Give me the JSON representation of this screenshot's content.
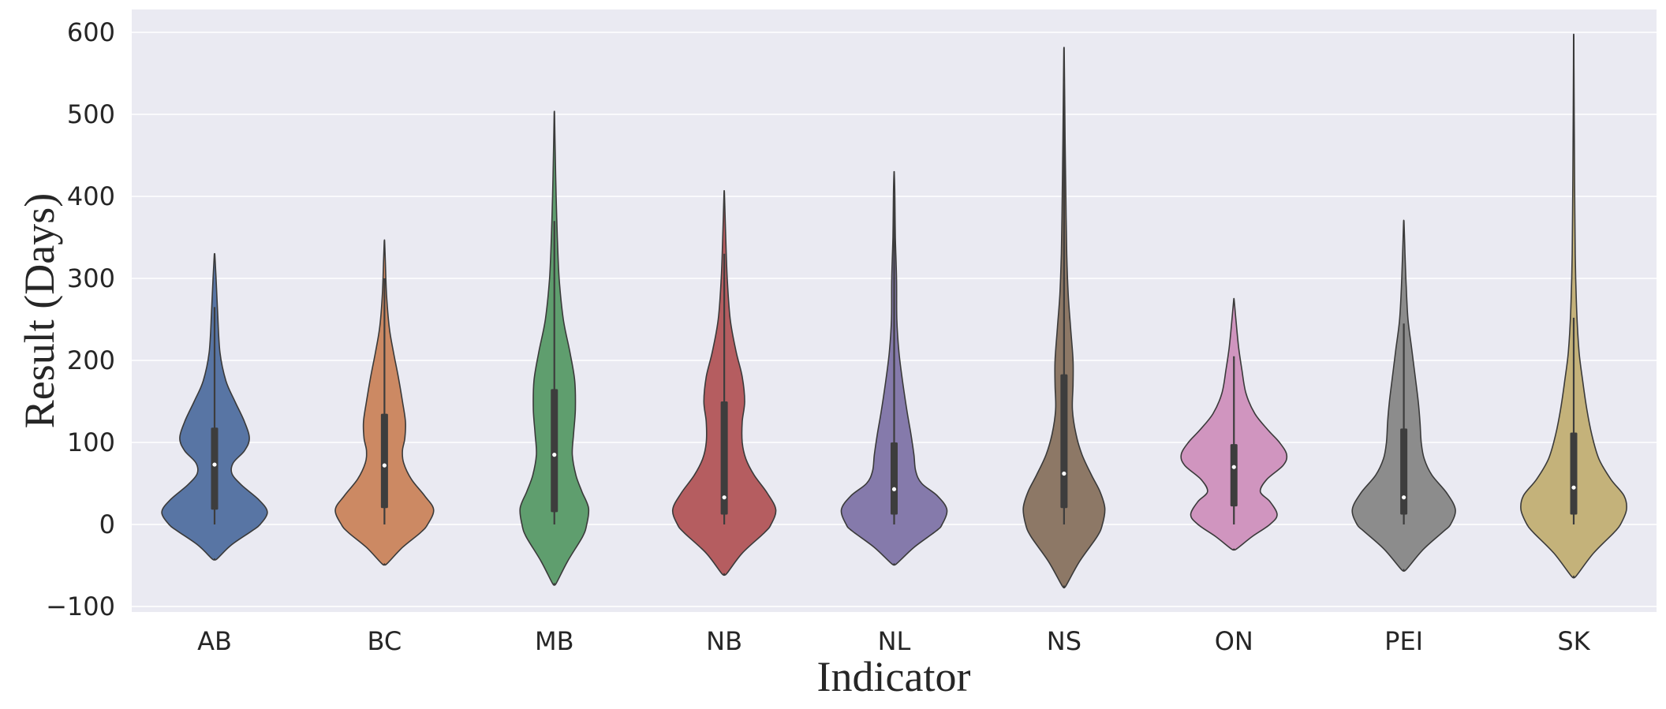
{
  "chart_data": {
    "type": "violin",
    "title": "",
    "xlabel": "Indicator",
    "ylabel": "Result (Days)",
    "ylim": [
      -110,
      630
    ],
    "yticks": [
      -100,
      0,
      100,
      200,
      300,
      400,
      500,
      600
    ],
    "ytick_labels": [
      "−100",
      "0",
      "100",
      "200",
      "300",
      "400",
      "500",
      "600"
    ],
    "grid": true,
    "background": "#EAEAF2",
    "categories": [
      "AB",
      "BC",
      "MB",
      "NB",
      "NL",
      "NS",
      "ON",
      "PEI",
      "SK"
    ],
    "series": [
      {
        "category": "AB",
        "color": "#5875A4",
        "min": -42,
        "max": 328,
        "q1": 18,
        "median": 73,
        "q3": 118,
        "whisker_low": 0,
        "whisker_high": 265,
        "density": [
          [
            -42,
            0.04
          ],
          [
            -25,
            0.28
          ],
          [
            -8,
            0.62
          ],
          [
            0,
            0.76
          ],
          [
            15,
            0.88
          ],
          [
            30,
            0.74
          ],
          [
            48,
            0.45
          ],
          [
            62,
            0.29
          ],
          [
            75,
            0.31
          ],
          [
            90,
            0.5
          ],
          [
            105,
            0.58
          ],
          [
            125,
            0.5
          ],
          [
            150,
            0.34
          ],
          [
            175,
            0.19
          ],
          [
            210,
            0.09
          ],
          [
            260,
            0.05
          ],
          [
            300,
            0.025
          ],
          [
            328,
            0.005
          ]
        ]
      },
      {
        "category": "BC",
        "color": "#CC8963",
        "min": -48,
        "max": 345,
        "q1": 20,
        "median": 72,
        "q3": 135,
        "whisker_low": 0,
        "whisker_high": 300,
        "density": [
          [
            -48,
            0.04
          ],
          [
            -28,
            0.3
          ],
          [
            -10,
            0.6
          ],
          [
            0,
            0.72
          ],
          [
            18,
            0.82
          ],
          [
            35,
            0.67
          ],
          [
            55,
            0.45
          ],
          [
            75,
            0.32
          ],
          [
            90,
            0.3
          ],
          [
            105,
            0.34
          ],
          [
            125,
            0.35
          ],
          [
            150,
            0.3
          ],
          [
            180,
            0.23
          ],
          [
            210,
            0.15
          ],
          [
            240,
            0.08
          ],
          [
            280,
            0.035
          ],
          [
            320,
            0.015
          ],
          [
            345,
            0.003
          ]
        ]
      },
      {
        "category": "MB",
        "color": "#5F9E6E",
        "min": -72,
        "max": 500,
        "q1": 15,
        "median": 85,
        "q3": 165,
        "whisker_low": 0,
        "whisker_high": 370,
        "density": [
          [
            -72,
            0.03
          ],
          [
            -45,
            0.22
          ],
          [
            -15,
            0.47
          ],
          [
            0,
            0.54
          ],
          [
            20,
            0.57
          ],
          [
            40,
            0.46
          ],
          [
            60,
            0.36
          ],
          [
            85,
            0.3
          ],
          [
            110,
            0.32
          ],
          [
            140,
            0.35
          ],
          [
            175,
            0.34
          ],
          [
            210,
            0.26
          ],
          [
            250,
            0.15
          ],
          [
            300,
            0.08
          ],
          [
            350,
            0.05
          ],
          [
            400,
            0.03
          ],
          [
            450,
            0.015
          ],
          [
            500,
            0.003
          ]
        ]
      },
      {
        "category": "NB",
        "color": "#B55D60",
        "min": -60,
        "max": 403,
        "q1": 12,
        "median": 33,
        "q3": 150,
        "whisker_low": 0,
        "whisker_high": 330,
        "density": [
          [
            -60,
            0.04
          ],
          [
            -35,
            0.3
          ],
          [
            -10,
            0.67
          ],
          [
            0,
            0.78
          ],
          [
            18,
            0.86
          ],
          [
            38,
            0.72
          ],
          [
            60,
            0.5
          ],
          [
            80,
            0.36
          ],
          [
            100,
            0.3
          ],
          [
            125,
            0.3
          ],
          [
            150,
            0.34
          ],
          [
            180,
            0.3
          ],
          [
            210,
            0.2
          ],
          [
            250,
            0.1
          ],
          [
            300,
            0.05
          ],
          [
            350,
            0.025
          ],
          [
            403,
            0.004
          ]
        ]
      },
      {
        "category": "NL",
        "color": "#857AAB",
        "min": -48,
        "max": 428,
        "q1": 12,
        "median": 43,
        "q3": 100,
        "whisker_low": 0,
        "whisker_high": 400,
        "density": [
          [
            -48,
            0.04
          ],
          [
            -28,
            0.33
          ],
          [
            -8,
            0.7
          ],
          [
            0,
            0.8
          ],
          [
            18,
            0.88
          ],
          [
            35,
            0.72
          ],
          [
            50,
            0.46
          ],
          [
            65,
            0.36
          ],
          [
            85,
            0.33
          ],
          [
            110,
            0.28
          ],
          [
            140,
            0.21
          ],
          [
            175,
            0.14
          ],
          [
            210,
            0.08
          ],
          [
            250,
            0.045
          ],
          [
            300,
            0.04
          ],
          [
            350,
            0.02
          ],
          [
            400,
            0.012
          ],
          [
            428,
            0.003
          ]
        ]
      },
      {
        "category": "NS",
        "color": "#8D7866",
        "min": -75,
        "max": 578,
        "q1": 20,
        "median": 62,
        "q3": 183,
        "whisker_low": 0,
        "whisker_high": 540,
        "density": [
          [
            -75,
            0.03
          ],
          [
            -45,
            0.26
          ],
          [
            -15,
            0.55
          ],
          [
            0,
            0.64
          ],
          [
            20,
            0.68
          ],
          [
            40,
            0.6
          ],
          [
            60,
            0.46
          ],
          [
            85,
            0.3
          ],
          [
            110,
            0.2
          ],
          [
            140,
            0.14
          ],
          [
            170,
            0.15
          ],
          [
            200,
            0.15
          ],
          [
            240,
            0.11
          ],
          [
            280,
            0.07
          ],
          [
            330,
            0.045
          ],
          [
            400,
            0.03
          ],
          [
            470,
            0.018
          ],
          [
            530,
            0.01
          ],
          [
            578,
            0.003
          ]
        ]
      },
      {
        "category": "ON",
        "color": "#D095BF",
        "min": -30,
        "max": 273,
        "q1": 22,
        "median": 70,
        "q3": 98,
        "whisker_low": 0,
        "whisker_high": 205,
        "density": [
          [
            -30,
            0.04
          ],
          [
            -15,
            0.3
          ],
          [
            0,
            0.6
          ],
          [
            12,
            0.72
          ],
          [
            28,
            0.6
          ],
          [
            40,
            0.44
          ],
          [
            55,
            0.55
          ],
          [
            72,
            0.82
          ],
          [
            85,
            0.88
          ],
          [
            100,
            0.76
          ],
          [
            115,
            0.57
          ],
          [
            135,
            0.35
          ],
          [
            160,
            0.2
          ],
          [
            190,
            0.13
          ],
          [
            215,
            0.08
          ],
          [
            240,
            0.045
          ],
          [
            273,
            0.005
          ]
        ]
      },
      {
        "category": "PEI",
        "color": "#8C8C8C",
        "min": -55,
        "max": 368,
        "q1": 12,
        "median": 33,
        "q3": 117,
        "whisker_low": 0,
        "whisker_high": 245,
        "density": [
          [
            -55,
            0.04
          ],
          [
            -30,
            0.33
          ],
          [
            -8,
            0.67
          ],
          [
            0,
            0.78
          ],
          [
            18,
            0.86
          ],
          [
            38,
            0.72
          ],
          [
            60,
            0.47
          ],
          [
            80,
            0.34
          ],
          [
            100,
            0.29
          ],
          [
            125,
            0.27
          ],
          [
            150,
            0.24
          ],
          [
            180,
            0.19
          ],
          [
            215,
            0.13
          ],
          [
            250,
            0.07
          ],
          [
            290,
            0.04
          ],
          [
            330,
            0.02
          ],
          [
            368,
            0.004
          ]
        ]
      },
      {
        "category": "SK",
        "color": "#C4B27A",
        "min": -63,
        "max": 595,
        "q1": 12,
        "median": 45,
        "q3": 112,
        "whisker_low": 0,
        "whisker_high": 252,
        "density": [
          [
            -63,
            0.04
          ],
          [
            -35,
            0.33
          ],
          [
            -10,
            0.67
          ],
          [
            0,
            0.78
          ],
          [
            18,
            0.88
          ],
          [
            35,
            0.84
          ],
          [
            55,
            0.62
          ],
          [
            80,
            0.42
          ],
          [
            110,
            0.3
          ],
          [
            140,
            0.22
          ],
          [
            175,
            0.15
          ],
          [
            210,
            0.09
          ],
          [
            260,
            0.05
          ],
          [
            330,
            0.025
          ],
          [
            420,
            0.015
          ],
          [
            500,
            0.008
          ],
          [
            560,
            0.004
          ],
          [
            595,
            0.002
          ]
        ]
      }
    ]
  }
}
